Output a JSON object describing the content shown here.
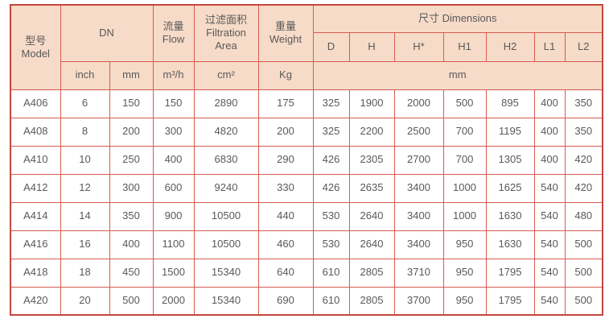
{
  "title": "Filter product specification table",
  "colors": {
    "header_bg": "#f6dbc8",
    "border_inner": "#d85c4e",
    "border_outer": "#c5473b",
    "text": "#595959",
    "row_bg": "#ffffff"
  },
  "header": {
    "model_zh": "型号",
    "model_en": "Model",
    "dn": "DN",
    "flow_zh": "流量",
    "flow_en": "Flow",
    "filtration_zh": "过滤面积",
    "filtration_en": "Filtration Area",
    "weight_zh": "重量",
    "weight_en": "Weight",
    "dimensions": "尺寸 Dimensions",
    "dim_cols": [
      "D",
      "H",
      "H*",
      "H1",
      "H2",
      "L1",
      "L2"
    ],
    "unit_inch": "inch",
    "unit_mm": "mm",
    "unit_flow": "m³/h",
    "unit_area": "cm²",
    "unit_weight": "Kg",
    "unit_dims": "mm"
  },
  "column_keys": [
    "model",
    "inch",
    "mm",
    "flow",
    "area",
    "weight",
    "d",
    "h",
    "h_star",
    "h1",
    "h2",
    "l1",
    "l2"
  ],
  "rows": [
    [
      "A406",
      "6",
      "150",
      "150",
      "2890",
      "175",
      "325",
      "1900",
      "2000",
      "500",
      "895",
      "400",
      "350"
    ],
    [
      "A408",
      "8",
      "200",
      "300",
      "4820",
      "200",
      "325",
      "2200",
      "2500",
      "700",
      "1195",
      "400",
      "350"
    ],
    [
      "A410",
      "10",
      "250",
      "400",
      "6830",
      "290",
      "426",
      "2305",
      "2700",
      "700",
      "1305",
      "400",
      "420"
    ],
    [
      "A412",
      "12",
      "300",
      "600",
      "9240",
      "330",
      "426",
      "2635",
      "3400",
      "1000",
      "1625",
      "540",
      "420"
    ],
    [
      "A414",
      "14",
      "350",
      "900",
      "10500",
      "440",
      "530",
      "2640",
      "3400",
      "1000",
      "1630",
      "540",
      "480"
    ],
    [
      "A416",
      "16",
      "400",
      "1100",
      "10500",
      "460",
      "530",
      "2640",
      "3400",
      "950",
      "1630",
      "540",
      "500"
    ],
    [
      "A418",
      "18",
      "450",
      "1500",
      "15340",
      "640",
      "610",
      "2805",
      "3710",
      "950",
      "1795",
      "540",
      "500"
    ],
    [
      "A420",
      "20",
      "500",
      "2000",
      "15340",
      "690",
      "610",
      "2805",
      "3700",
      "950",
      "1795",
      "540",
      "500"
    ]
  ]
}
